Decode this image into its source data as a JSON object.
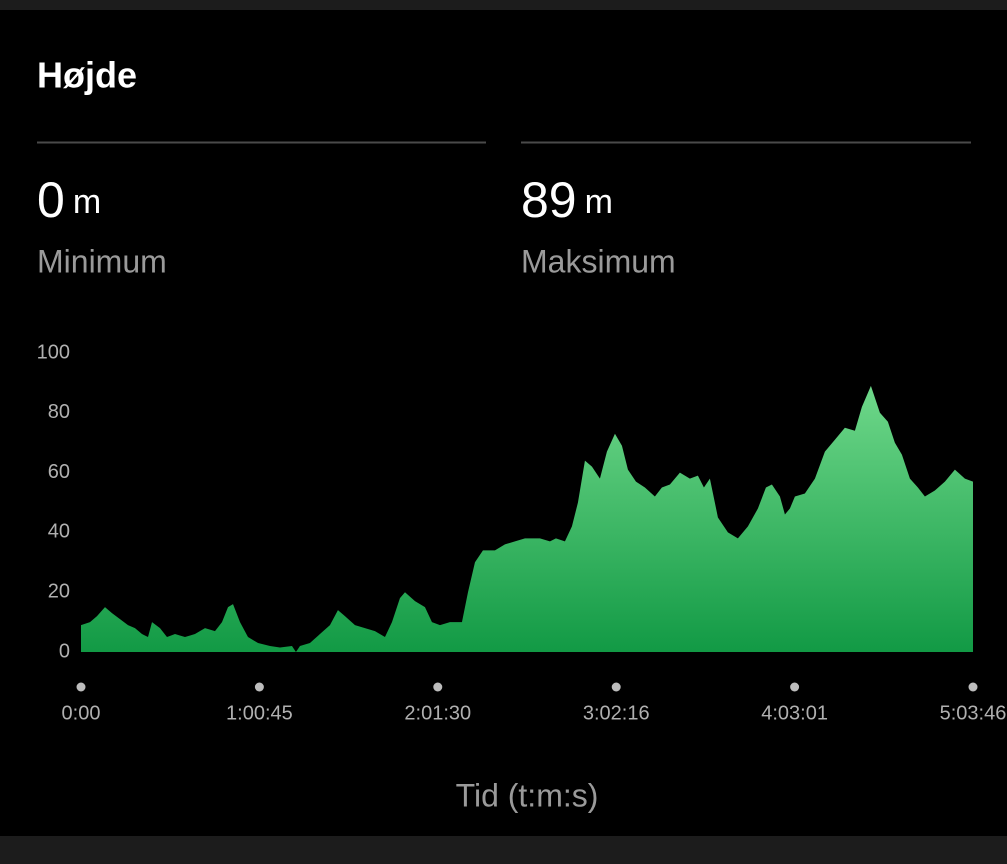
{
  "title": "Højde",
  "stats": [
    {
      "value": 0,
      "unit": "m",
      "label": "Minimum"
    },
    {
      "value": 89,
      "unit": "m",
      "label": "Maksimum"
    }
  ],
  "chart_data": {
    "type": "area",
    "xlabel": "Tid (t:m:s)",
    "color": "#129a45",
    "xlim": [
      0,
      18226
    ],
    "xticks": [
      {
        "value": 0,
        "label": "0:00"
      },
      {
        "value": 3645,
        "label": "1:00:45"
      },
      {
        "value": 7290,
        "label": "2:01:30"
      },
      {
        "value": 10936,
        "label": "3:02:16"
      },
      {
        "value": 14581,
        "label": "4:03:01"
      },
      {
        "value": 18226,
        "label": "5:03:46"
      }
    ],
    "ylim": [
      0,
      100
    ],
    "yticks": [
      0,
      20,
      40,
      60,
      80,
      100
    ],
    "x": [
      0,
      184,
      327,
      490,
      633,
      797,
      960,
      1103,
      1246,
      1369,
      1451,
      1614,
      1757,
      1921,
      2125,
      2329,
      2534,
      2738,
      2881,
      3004,
      3106,
      3249,
      3412,
      3617,
      3862,
      4066,
      4311,
      4392,
      4474,
      4678,
      4883,
      5087,
      5250,
      5393,
      5598,
      5802,
      6006,
      6211,
      6354,
      6517,
      6620,
      6824,
      7028,
      7171,
      7335,
      7539,
      7784,
      7907,
      8050,
      8213,
      8458,
      8662,
      8867,
      9071,
      9377,
      9582,
      9704,
      9888,
      10031,
      10154,
      10297,
      10440,
      10603,
      10746,
      10910,
      11053,
      11175,
      11339,
      11522,
      11726,
      11869,
      12033,
      12237,
      12441,
      12605,
      12728,
      12850,
      13014,
      13218,
      13422,
      13627,
      13831,
      13995,
      14117,
      14281,
      14383,
      14485,
      14587,
      14791,
      14996,
      15200,
      15404,
      15608,
      15813,
      15956,
      16140,
      16324,
      16487,
      16630,
      16773,
      16937,
      17100,
      17243,
      17447,
      17652,
      17856,
      18060,
      18226
    ],
    "values": [
      9,
      10,
      12,
      15,
      13,
      11,
      9,
      8,
      6,
      5,
      10,
      8,
      5,
      6,
      5,
      6,
      8,
      7,
      10,
      15,
      16,
      10,
      5,
      3,
      2,
      1.5,
      2,
      0,
      2,
      3,
      6,
      9,
      14,
      12,
      9,
      8,
      7,
      5,
      10,
      18,
      20,
      17,
      15,
      10,
      9,
      10,
      10,
      20,
      30,
      34,
      34,
      36,
      37,
      38,
      38,
      37,
      38,
      37,
      42,
      50,
      64,
      62,
      58,
      67,
      73,
      69,
      61,
      57,
      55,
      52,
      55,
      56,
      60,
      58,
      59,
      55,
      58,
      45,
      40,
      38,
      42,
      48,
      55,
      56,
      52,
      46,
      48,
      52,
      53,
      58,
      67,
      71,
      75,
      74,
      82,
      89,
      80,
      77,
      70,
      66,
      58,
      55,
      52,
      54,
      57,
      61,
      58,
      57
    ]
  }
}
